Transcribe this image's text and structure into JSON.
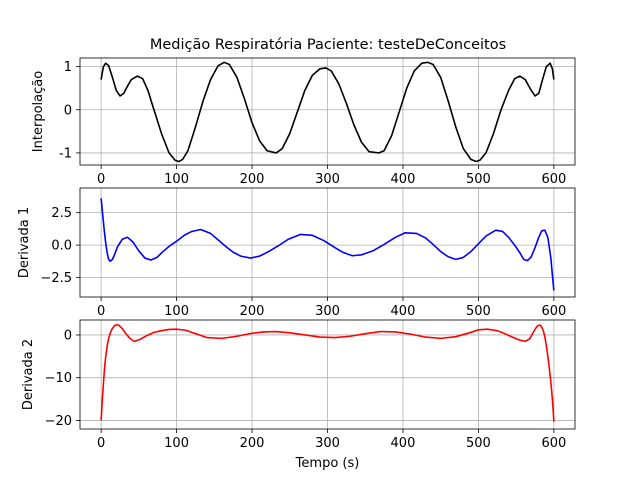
{
  "title": "Medição Respiratória Paciente: testeDeConceitos",
  "chart_data": [
    {
      "type": "line",
      "title": "Medição Respiratória Paciente: testeDeConceitos",
      "xlabel": "",
      "ylabel": "Interpolação",
      "xlim": [
        -28,
        628
      ],
      "ylim": [
        -1.28,
        1.2
      ],
      "xticks": [
        0,
        100,
        200,
        300,
        400,
        500,
        600
      ],
      "yticks": [
        -1,
        0,
        1
      ],
      "grid": true,
      "series": [
        {
          "color": "#000000",
          "x": [
            0,
            3,
            6,
            10,
            15,
            20,
            25,
            30,
            35,
            40,
            48,
            55,
            62,
            70,
            80,
            90,
            98,
            103,
            108,
            115,
            125,
            135,
            145,
            155,
            163,
            170,
            180,
            190,
            200,
            210,
            220,
            232,
            240,
            250,
            260,
            270,
            280,
            290,
            298,
            305,
            315,
            325,
            335,
            345,
            355,
            368,
            375,
            385,
            395,
            405,
            415,
            425,
            433,
            440,
            450,
            460,
            470,
            480,
            490,
            497,
            502,
            510,
            520,
            530,
            540,
            548,
            555,
            562,
            570,
            575,
            580,
            585,
            590,
            595,
            598,
            600
          ],
          "y": [
            0.7,
            1.0,
            1.08,
            1.02,
            0.75,
            0.45,
            0.32,
            0.38,
            0.55,
            0.7,
            0.78,
            0.72,
            0.45,
            0.0,
            -0.55,
            -1.0,
            -1.17,
            -1.2,
            -1.15,
            -0.95,
            -0.4,
            0.2,
            0.7,
            1.02,
            1.1,
            1.05,
            0.75,
            0.25,
            -0.3,
            -0.72,
            -0.95,
            -1.0,
            -0.9,
            -0.55,
            -0.05,
            0.45,
            0.8,
            0.95,
            0.97,
            0.9,
            0.6,
            0.15,
            -0.35,
            -0.75,
            -0.97,
            -1.0,
            -0.95,
            -0.6,
            -0.05,
            0.5,
            0.9,
            1.08,
            1.1,
            1.05,
            0.75,
            0.2,
            -0.4,
            -0.9,
            -1.15,
            -1.2,
            -1.17,
            -1.0,
            -0.55,
            0.0,
            0.45,
            0.72,
            0.78,
            0.7,
            0.45,
            0.32,
            0.38,
            0.7,
            1.0,
            1.08,
            0.95,
            0.7
          ]
        }
      ]
    },
    {
      "type": "line",
      "xlabel": "",
      "ylabel": "Derivada 1",
      "xlim": [
        -28,
        628
      ],
      "ylim": [
        -4.0,
        4.4
      ],
      "xticks": [
        0,
        100,
        200,
        300,
        400,
        500,
        600
      ],
      "yticks": [
        -2.5,
        0.0,
        2.5
      ],
      "ytick_labels": [
        "−2.5",
        "0.0",
        "2.5"
      ],
      "grid": true,
      "series": [
        {
          "color": "#0000ff",
          "x": [
            0,
            2,
            4,
            6,
            8,
            10,
            12,
            15,
            18,
            22,
            28,
            35,
            42,
            50,
            58,
            66,
            74,
            82,
            90,
            100,
            110,
            120,
            132,
            145,
            155,
            165,
            175,
            185,
            198,
            210,
            222,
            235,
            248,
            264,
            280,
            295,
            310,
            320,
            333,
            345,
            360,
            375,
            390,
            403,
            418,
            430,
            440,
            450,
            460,
            470,
            480,
            490,
            500,
            510,
            523,
            532,
            540,
            548,
            555,
            560,
            565,
            570,
            575,
            580,
            584,
            588,
            592,
            596,
            598,
            600
          ],
          "y": [
            3.6,
            2.4,
            1.2,
            0.2,
            -0.6,
            -1.1,
            -1.25,
            -1.1,
            -0.7,
            -0.1,
            0.45,
            0.6,
            0.25,
            -0.45,
            -1.0,
            -1.15,
            -0.95,
            -0.5,
            -0.1,
            0.3,
            0.75,
            1.05,
            1.2,
            0.9,
            0.4,
            -0.1,
            -0.55,
            -0.85,
            -1.0,
            -0.85,
            -0.5,
            -0.05,
            0.45,
            0.82,
            0.75,
            0.35,
            -0.2,
            -0.55,
            -0.82,
            -0.75,
            -0.45,
            0.05,
            0.6,
            0.95,
            0.9,
            0.55,
            0.05,
            -0.5,
            -0.9,
            -1.1,
            -0.95,
            -0.5,
            0.1,
            0.7,
            1.15,
            1.05,
            0.6,
            0.0,
            -0.6,
            -1.1,
            -1.2,
            -0.9,
            -0.2,
            0.6,
            1.1,
            1.15,
            0.6,
            -1.0,
            -2.3,
            -3.5
          ]
        }
      ]
    },
    {
      "type": "line",
      "xlabel": "Tempo (s)",
      "ylabel": "Derivada 2",
      "xlim": [
        -28,
        628
      ],
      "ylim": [
        -22.0,
        3.5
      ],
      "xticks": [
        0,
        100,
        200,
        300,
        400,
        500,
        600
      ],
      "yticks": [
        -20,
        -10,
        0
      ],
      "ytick_labels": [
        "−20",
        "−10",
        "0"
      ],
      "grid": true,
      "series": [
        {
          "color": "#ff0000",
          "x": [
            0,
            1,
            2,
            3,
            4,
            5,
            6,
            8,
            10,
            12,
            14,
            16,
            18,
            21,
            24,
            28,
            32,
            38,
            44,
            52,
            60,
            70,
            80,
            90,
            100,
            112,
            125,
            140,
            160,
            180,
            200,
            215,
            232,
            250,
            270,
            290,
            310,
            330,
            350,
            370,
            390,
            410,
            430,
            450,
            470,
            488,
            500,
            512,
            525,
            535,
            545,
            555,
            562,
            568,
            572,
            576,
            579,
            582,
            584,
            586,
            588,
            590,
            592,
            594,
            596,
            598,
            599,
            600
          ],
          "y": [
            -20.0,
            -17.0,
            -14.0,
            -11.5,
            -9.0,
            -7.0,
            -5.2,
            -2.5,
            -0.8,
            0.4,
            1.2,
            1.8,
            2.2,
            2.4,
            2.2,
            1.5,
            0.5,
            -0.8,
            -1.5,
            -1.0,
            -0.2,
            0.6,
            1.0,
            1.3,
            1.35,
            1.1,
            0.3,
            -0.6,
            -0.8,
            -0.3,
            0.4,
            0.7,
            0.8,
            0.5,
            0.0,
            -0.5,
            -0.6,
            -0.3,
            0.3,
            0.8,
            0.7,
            0.2,
            -0.5,
            -0.8,
            -0.4,
            0.5,
            1.2,
            1.35,
            1.0,
            0.3,
            -0.5,
            -1.2,
            -1.5,
            -0.9,
            0.4,
            1.6,
            2.2,
            2.3,
            1.8,
            1.0,
            -0.4,
            -2.5,
            -5.0,
            -7.8,
            -11.0,
            -15.0,
            -17.5,
            -20.3
          ]
        }
      ]
    }
  ]
}
